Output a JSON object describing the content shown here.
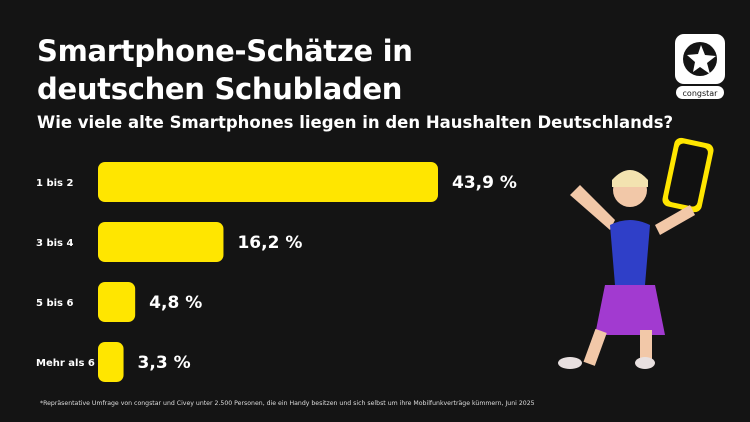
{
  "title_line1": "Smartphone-Schätze in",
  "title_line2": "deutschen Schubladen",
  "subtitle": "Wie viele alte Smartphones liegen in den Haushalten Deutschlands?",
  "logo_text": "congstar",
  "footnote": "*Repräsentative Umfrage von congstar und Civey unter 2.500 Personen, die ein Handy besitzen und sich selbst um ihre Mobilfunkverträge kümmern, Juni 2025",
  "colors": {
    "background": "#141414",
    "bar": "#FFE600",
    "text": "#FFFFFF"
  },
  "chart_data": {
    "type": "bar",
    "orientation": "horizontal",
    "categories": [
      "1 bis 2",
      "3 bis 4",
      "5 bis 6",
      "Mehr als 6"
    ],
    "values": [
      43.9,
      16.2,
      4.8,
      3.3
    ],
    "value_labels": [
      "43,9 %",
      "16,2 %",
      "4,8 %",
      "3,3 %"
    ],
    "unit": "%",
    "grid": false,
    "xlim": [
      0,
      43.9
    ]
  }
}
